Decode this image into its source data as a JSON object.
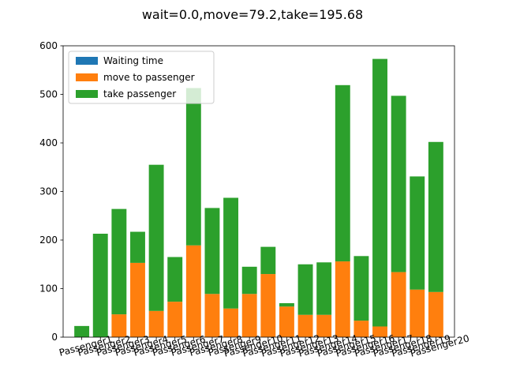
{
  "chart_data": {
    "type": "bar",
    "stacked": true,
    "title": "wait=0.0,move=79.2,take=195.68",
    "xlabel": "",
    "ylabel": "",
    "ylim": [
      0,
      600
    ],
    "yticks": [
      0,
      100,
      200,
      300,
      400,
      500,
      600
    ],
    "categories": [
      "Passenger1",
      "Passenger2",
      "Passenger3",
      "Passenger4",
      "Passenger5",
      "Passenger6",
      "Passenger7",
      "Passenger8",
      "Passenger9",
      "Passenger10",
      "Passenger11",
      "Passenger12",
      "Passenger13",
      "Passenger14",
      "Passenger15",
      "Passenger16",
      "Passenger17",
      "Passenger18",
      "Passenger19",
      "Passenger20"
    ],
    "tick_rotation_deg": 15,
    "legend": {
      "position": "upper left"
    },
    "series": [
      {
        "name": "Waiting time",
        "color": "#1f77b4",
        "values": [
          0,
          0,
          0,
          0,
          0,
          0,
          0,
          0,
          0,
          0,
          0,
          0,
          0,
          0,
          0,
          0,
          0,
          0,
          0,
          0
        ]
      },
      {
        "name": "move to passenger",
        "color": "#ff7f0e",
        "values": [
          0,
          0,
          47,
          153,
          54,
          73,
          189,
          89,
          59,
          89,
          130,
          63,
          46,
          46,
          156,
          34,
          22,
          134,
          98,
          93
        ]
      },
      {
        "name": "take passenger",
        "color": "#2ca02c",
        "values": [
          23,
          213,
          217,
          64,
          301,
          92,
          324,
          177,
          228,
          56,
          56,
          7,
          104,
          108,
          363,
          133,
          551,
          363,
          233,
          309
        ]
      }
    ]
  }
}
